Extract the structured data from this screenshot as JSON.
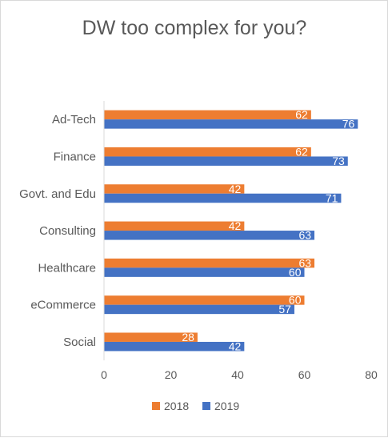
{
  "chart_data": {
    "type": "bar",
    "orientation": "horizontal",
    "title": "DW too complex for you?",
    "xlabel": "",
    "ylabel": "",
    "categories": [
      "Ad-Tech",
      "Finance",
      "Govt. and Edu",
      "Consulting",
      "Healthcare",
      "eCommerce",
      "Social"
    ],
    "series": [
      {
        "name": "2018",
        "color": "#ED7D31",
        "values": [
          62,
          62,
          42,
          42,
          63,
          60,
          28
        ]
      },
      {
        "name": "2019",
        "color": "#4472C4",
        "values": [
          76,
          73,
          71,
          63,
          60,
          57,
          42
        ]
      }
    ],
    "xlim": [
      0,
      80
    ],
    "xticks": [
      0,
      20,
      40,
      60,
      80
    ],
    "grid": false,
    "legend_position": "bottom",
    "data_labels": true
  }
}
